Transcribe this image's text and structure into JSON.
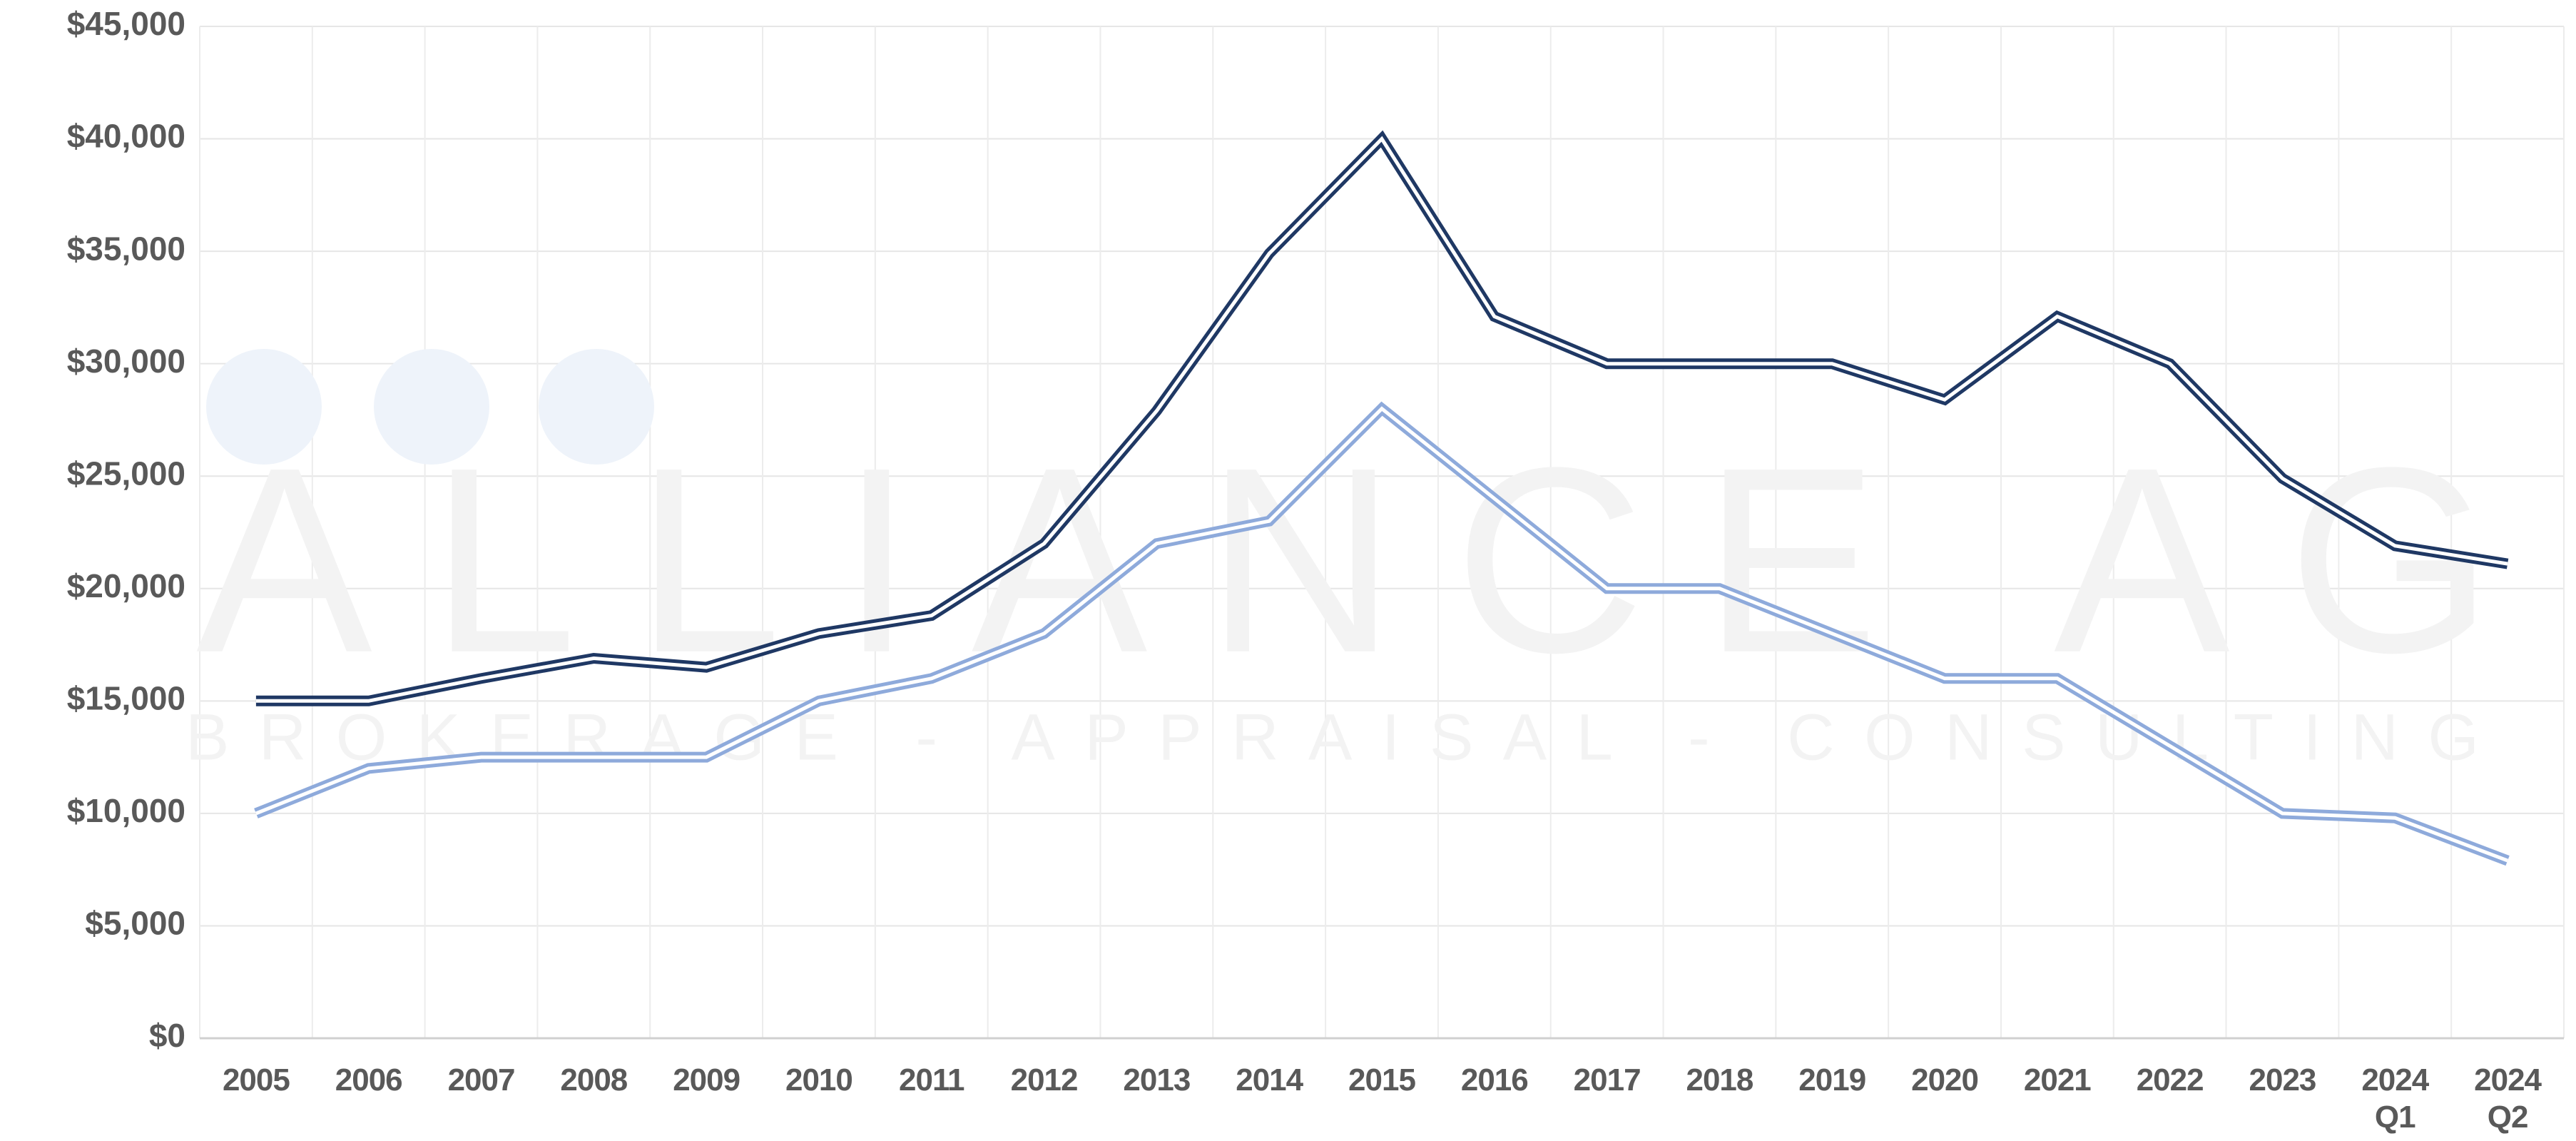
{
  "chart_data": {
    "type": "line",
    "watermark": {
      "title": "ALLIANCE AG",
      "subtitle": "BROKERAGE - APPRAISAL - CONSULTING"
    },
    "categories": [
      "2005",
      "2006",
      "2007",
      "2008",
      "2009",
      "2010",
      "2011",
      "2012",
      "2013",
      "2014",
      "2015",
      "2016",
      "2017",
      "2018",
      "2019",
      "2020",
      "2021",
      "2022",
      "2023",
      "2024\nQ1",
      "2024\nQ2"
    ],
    "series": [
      {
        "color": "#1f3864",
        "values": [
          15000,
          15000,
          16000,
          16900,
          16500,
          18000,
          18800,
          22000,
          27900,
          34900,
          40000,
          32100,
          30000,
          30000,
          30000,
          28400,
          32100,
          30000,
          24900,
          21900,
          21100
        ]
      },
      {
        "color": "#8eaadb",
        "values": [
          10000,
          12000,
          12500,
          12500,
          12500,
          15000,
          16000,
          18000,
          22000,
          23000,
          28000,
          24000,
          20000,
          20000,
          18000,
          16000,
          16000,
          13000,
          10000,
          9800,
          7900
        ]
      }
    ],
    "ylim": [
      0,
      45000
    ],
    "yticks": [
      {
        "value": 0,
        "label": "$0"
      },
      {
        "value": 5000,
        "label": "$5,000"
      },
      {
        "value": 10000,
        "label": "$10,000"
      },
      {
        "value": 15000,
        "label": "$15,000"
      },
      {
        "value": 20000,
        "label": "$20,000"
      },
      {
        "value": 25000,
        "label": "$25,000"
      },
      {
        "value": 30000,
        "label": "$30,000"
      },
      {
        "value": 35000,
        "label": "$35,000"
      },
      {
        "value": 40000,
        "label": "$40,000"
      },
      {
        "value": 45000,
        "label": "$45,000"
      }
    ],
    "grid": true
  }
}
